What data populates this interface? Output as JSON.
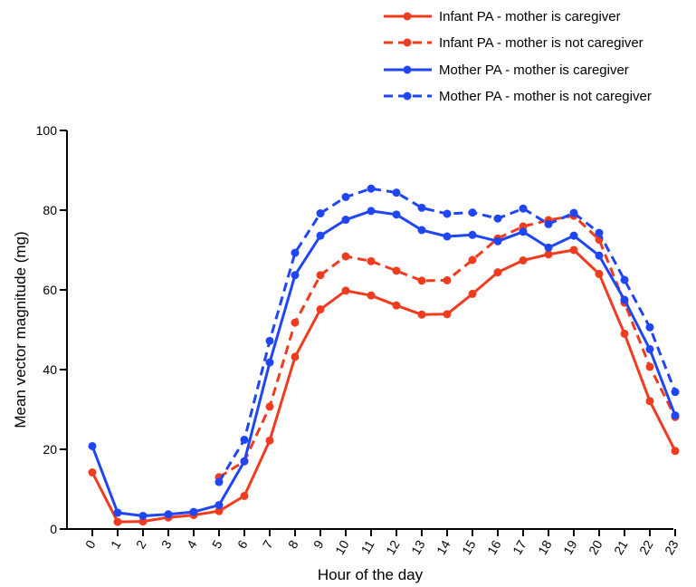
{
  "chart_data": {
    "type": "line",
    "title": "",
    "xlabel": "Hour of the day",
    "ylabel": "Mean vector magnitude (mg)",
    "x": [
      0,
      1,
      2,
      3,
      4,
      5,
      6,
      7,
      8,
      9,
      10,
      11,
      12,
      13,
      14,
      15,
      16,
      17,
      18,
      19,
      20,
      21,
      22,
      23
    ],
    "x_tick_labels": [
      "0",
      "1",
      "2",
      "3",
      "4",
      "5",
      "6",
      "7",
      "8",
      "9",
      "10",
      "11",
      "12",
      "13",
      "14",
      "15",
      "16",
      "17",
      "18",
      "19",
      "20",
      "21",
      "22",
      "23"
    ],
    "ylim": [
      0,
      100
    ],
    "y_ticks": [
      0,
      20,
      40,
      60,
      80,
      100
    ],
    "y_tick_labels": [
      "0",
      "20",
      "40",
      "60",
      "80",
      "100"
    ],
    "grid": false,
    "legend_position": "top-right",
    "series": [
      {
        "name": "Infant PA - mother is caregiver",
        "color": "#f03c1e",
        "dash": "solid",
        "values": [
          14.2,
          1.8,
          1.9,
          2.9,
          3.5,
          4.5,
          8.3,
          22.2,
          43.2,
          55.1,
          59.8,
          58.6,
          56.1,
          53.8,
          53.9,
          59.0,
          64.4,
          67.4,
          68.9,
          70.0,
          64.0,
          49.0,
          32.1,
          19.6
        ]
      },
      {
        "name": "Infant PA - mother is not caregiver",
        "color": "#f03c1e",
        "dash": "dashed",
        "values": [
          null,
          null,
          null,
          null,
          null,
          13.0,
          17.0,
          30.7,
          51.8,
          63.7,
          68.4,
          67.2,
          64.8,
          62.3,
          62.4,
          67.5,
          72.9,
          75.9,
          77.5,
          78.6,
          72.6,
          56.8,
          40.7,
          28.1
        ]
      },
      {
        "name": "Mother PA - mother is caregiver",
        "color": "#1f46f2",
        "dash": "solid",
        "values": [
          20.8,
          4.1,
          3.3,
          3.7,
          4.3,
          6.0,
          17.0,
          41.8,
          63.7,
          73.6,
          77.6,
          79.8,
          78.9,
          75.0,
          73.4,
          73.8,
          72.2,
          74.6,
          70.6,
          73.6,
          68.6,
          57.5,
          45.1,
          28.5
        ]
      },
      {
        "name": "Mother PA - mother is not caregiver",
        "color": "#1f46f2",
        "dash": "dashed",
        "values": [
          null,
          null,
          null,
          null,
          null,
          11.8,
          22.4,
          47.2,
          69.3,
          79.2,
          83.3,
          85.4,
          84.4,
          80.6,
          79.1,
          79.4,
          77.9,
          80.4,
          76.5,
          79.3,
          74.3,
          62.5,
          50.6,
          34.4
        ]
      }
    ]
  }
}
